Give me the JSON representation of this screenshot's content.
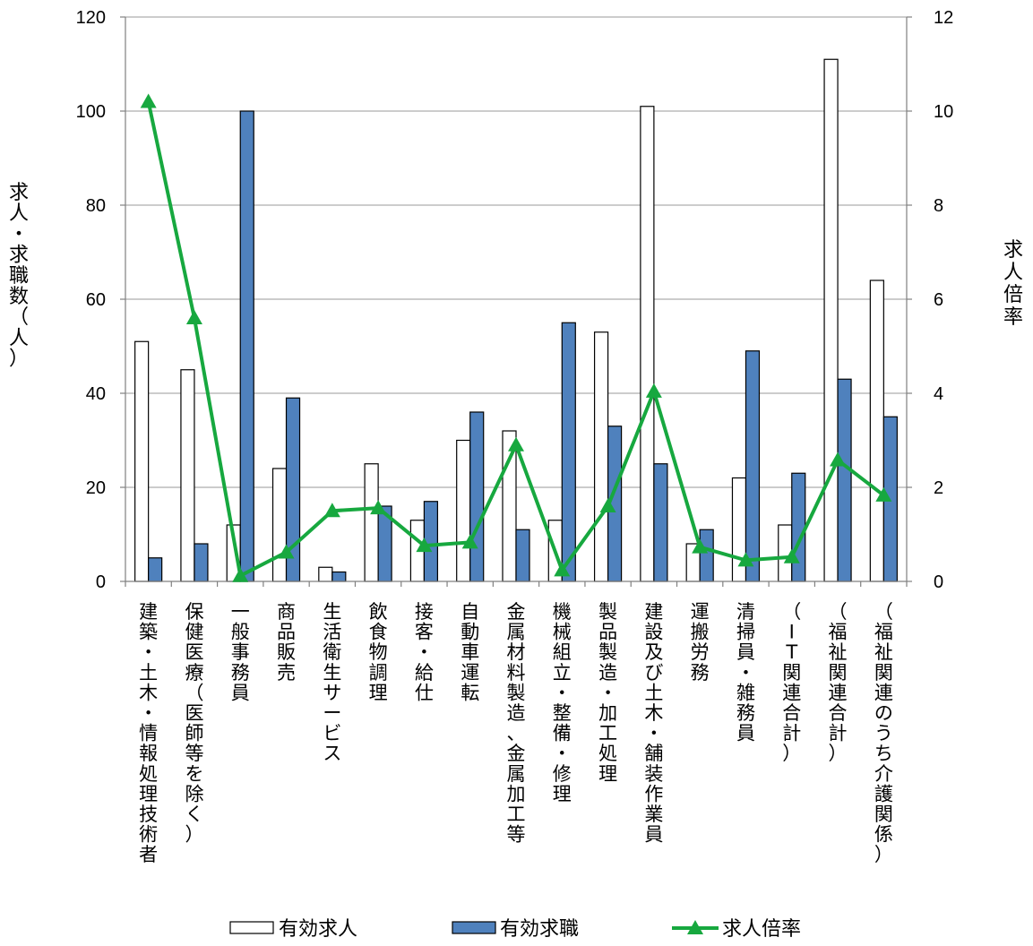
{
  "chart_data": {
    "type": "bar",
    "categories": [
      "建築・土木・情報処理技術者",
      "保健医療（医師等を除く）",
      "一般事務員",
      "商品販売",
      "生活衛生サービス",
      "飲食物調理",
      "接客・給仕",
      "自動車運転",
      "金属材料製造、金属加工等",
      "機械組立・整備・修理",
      "製品製造・加工処理",
      "建設及び土木・舗装作業員",
      "運搬労務",
      "清掃員・雑務員",
      "（IT関連合計）",
      "（福祉関連合計）",
      "（福祉関連のうち介護関係）"
    ],
    "series": [
      {
        "name": "有効求人",
        "axis": "left",
        "kind": "bar",
        "color": "#ffffff",
        "stroke": "#000000",
        "values": [
          51,
          45,
          12,
          24,
          3,
          25,
          13,
          30,
          32,
          13,
          53,
          101,
          8,
          22,
          12,
          111,
          64
        ]
      },
      {
        "name": "有効求職",
        "axis": "left",
        "kind": "bar",
        "color": "#4f81bd",
        "stroke": "#000000",
        "values": [
          5,
          8,
          100,
          39,
          2,
          16,
          17,
          36,
          11,
          55,
          33,
          25,
          11,
          49,
          23,
          43,
          35
        ]
      },
      {
        "name": "求人倍率",
        "axis": "right",
        "kind": "line",
        "color": "#17a83f",
        "marker": "triangle",
        "values": [
          10.2,
          5.6,
          0.12,
          0.62,
          1.5,
          1.56,
          0.76,
          0.83,
          2.9,
          0.24,
          1.6,
          4.04,
          0.73,
          0.45,
          0.52,
          2.58,
          1.83
        ]
      }
    ],
    "y_left": {
      "label": "求人・求職数（人）",
      "min": 0,
      "max": 120,
      "ticks": [
        "0",
        "20",
        "40",
        "60",
        "80",
        "100",
        "120"
      ]
    },
    "y_right": {
      "label": "求人倍率",
      "min": 0,
      "max": 12,
      "ticks": [
        "0",
        "2",
        "4",
        "6",
        "8",
        "10",
        "12"
      ]
    },
    "grid": true,
    "legend_position": "bottom"
  }
}
